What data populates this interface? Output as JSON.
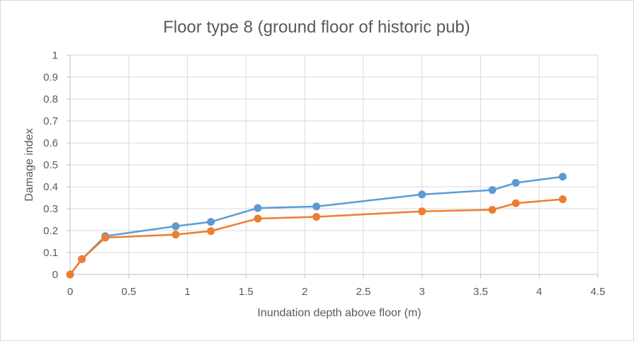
{
  "chart_data": {
    "type": "line",
    "title": "Floor type 8 (ground floor of historic pub)",
    "xlabel": "Inundation depth above floor (m)",
    "ylabel": "Damage index",
    "xlim": [
      0,
      4.5
    ],
    "ylim": [
      0,
      1
    ],
    "x_ticks": [
      "0",
      "0.5",
      "1",
      "1.5",
      "2",
      "2.5",
      "3",
      "3.5",
      "4",
      "4.5"
    ],
    "y_ticks": [
      "0",
      "0.1",
      "0.2",
      "0.3",
      "0.4",
      "0.5",
      "0.6",
      "0.7",
      "0.8",
      "0.9",
      "1"
    ],
    "grid": true,
    "legend": "none",
    "series": [
      {
        "color": "#5b9bd5",
        "x": [
          0,
          0.1,
          0.3,
          0.9,
          1.2,
          1.6,
          2.1,
          3.0,
          3.6,
          3.8,
          4.2
        ],
        "y": [
          0,
          0.07,
          0.175,
          0.22,
          0.24,
          0.303,
          0.31,
          0.365,
          0.385,
          0.418,
          0.446
        ]
      },
      {
        "color": "#ed7d31",
        "x": [
          0,
          0.1,
          0.3,
          0.9,
          1.2,
          1.6,
          2.1,
          3.0,
          3.6,
          3.8,
          4.2
        ],
        "y": [
          0,
          0.07,
          0.168,
          0.182,
          0.198,
          0.255,
          0.263,
          0.288,
          0.295,
          0.325,
          0.343
        ]
      }
    ]
  }
}
